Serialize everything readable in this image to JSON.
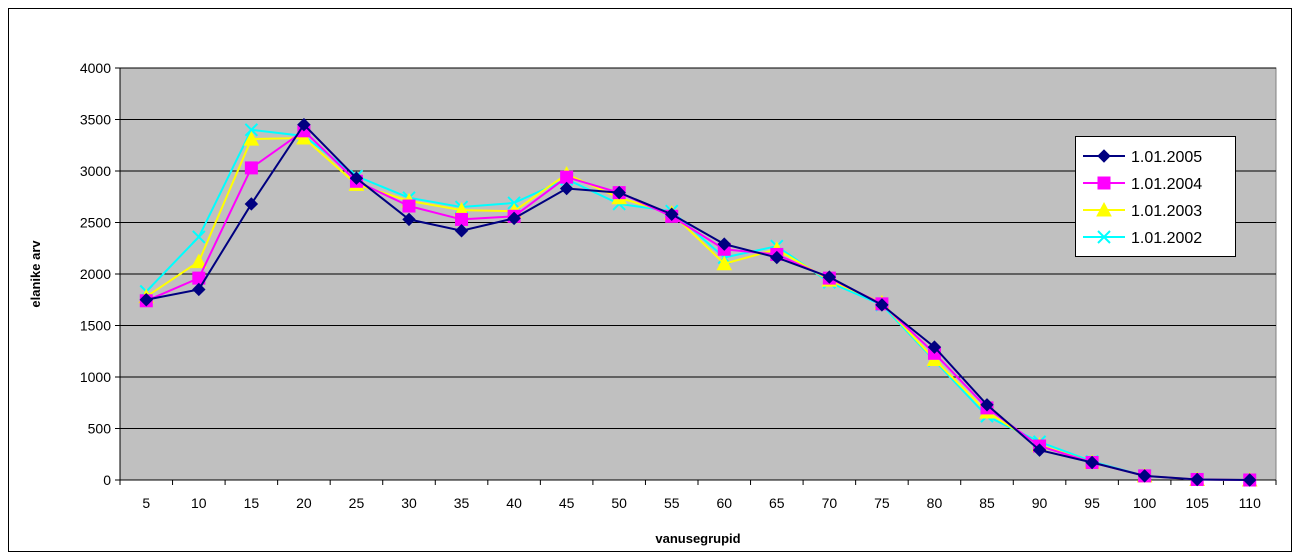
{
  "chart_data": {
    "type": "line",
    "xlabel": "vanusegrupid",
    "ylabel": "elanike arv",
    "categories": [
      "5",
      "10",
      "15",
      "20",
      "25",
      "30",
      "35",
      "40",
      "45",
      "50",
      "55",
      "60",
      "65",
      "70",
      "75",
      "80",
      "85",
      "90",
      "95",
      "100",
      "105",
      "110"
    ],
    "ylim": [
      0,
      4000
    ],
    "yticks": [
      "0",
      "500",
      "1000",
      "1500",
      "2000",
      "2500",
      "3000",
      "3500",
      "4000"
    ],
    "grid": true,
    "legend_position": "top-right",
    "series": [
      {
        "name": "1.01.2005",
        "color": "#000080",
        "marker": "diamond",
        "values": [
          1750,
          1850,
          2680,
          3450,
          2930,
          2530,
          2420,
          2540,
          2830,
          2790,
          2580,
          2290,
          2160,
          1970,
          1700,
          1290,
          730,
          290,
          170,
          40,
          5,
          0
        ]
      },
      {
        "name": "1.01.2004",
        "color": "#ff00ff",
        "marker": "square",
        "values": [
          1740,
          1960,
          3030,
          3390,
          2900,
          2660,
          2530,
          2560,
          2940,
          2790,
          2560,
          2240,
          2190,
          1960,
          1710,
          1230,
          700,
          330,
          170,
          40,
          5,
          0
        ]
      },
      {
        "name": "1.01.2003",
        "color": "#ffff00",
        "marker": "triangle",
        "values": [
          1780,
          2120,
          3310,
          3320,
          2870,
          2710,
          2620,
          2610,
          2970,
          2740,
          2590,
          2100,
          2240,
          1940,
          1720,
          1170,
          660,
          340,
          170,
          40,
          5,
          0
        ]
      },
      {
        "name": "1.01.2002",
        "color": "#00ffff",
        "marker": "x",
        "values": [
          1830,
          2360,
          3400,
          3340,
          2950,
          2740,
          2650,
          2690,
          2920,
          2680,
          2610,
          2160,
          2270,
          1920,
          1700,
          1160,
          620,
          370,
          180,
          40,
          5,
          0
        ]
      }
    ]
  }
}
